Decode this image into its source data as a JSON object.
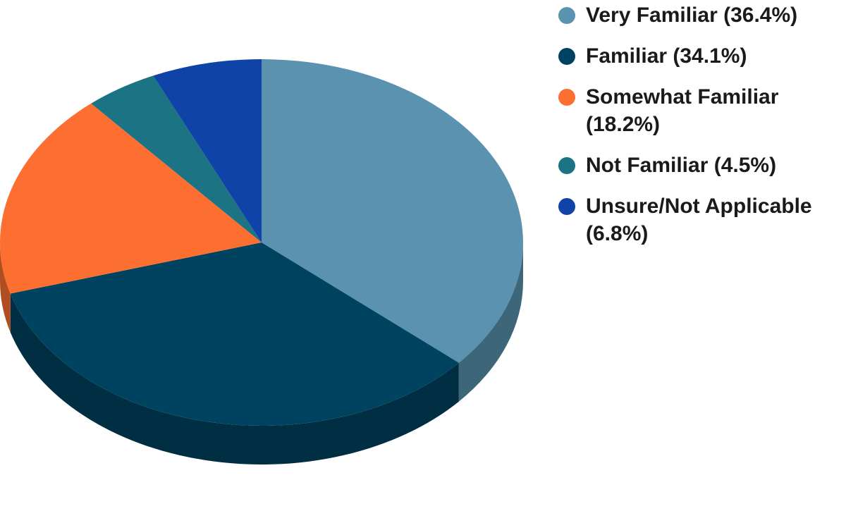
{
  "chart_data": {
    "type": "pie",
    "title": "",
    "legend_position": "right",
    "three_d": true,
    "slices": [
      {
        "label": "Very Familiar (36.4%)",
        "value": 36.4,
        "color": "#5a92af",
        "side_color": "#3e6679"
      },
      {
        "label": "Familiar (34.1%)",
        "value": 34.1,
        "color": "#004360",
        "side_color": "#002e42"
      },
      {
        "label": "Somewhat Familiar (18.2%)",
        "value": 18.2,
        "color": "#fd6f30",
        "side_color": "#b14e21"
      },
      {
        "label": "Not Familiar (4.5%)",
        "value": 4.5,
        "color": "#1b7383",
        "side_color": "#13505b"
      },
      {
        "label": "Unsure/Not Applicable (6.8%)",
        "value": 6.8,
        "color": "#0f43a8",
        "side_color": "#0a2f75"
      }
    ]
  }
}
